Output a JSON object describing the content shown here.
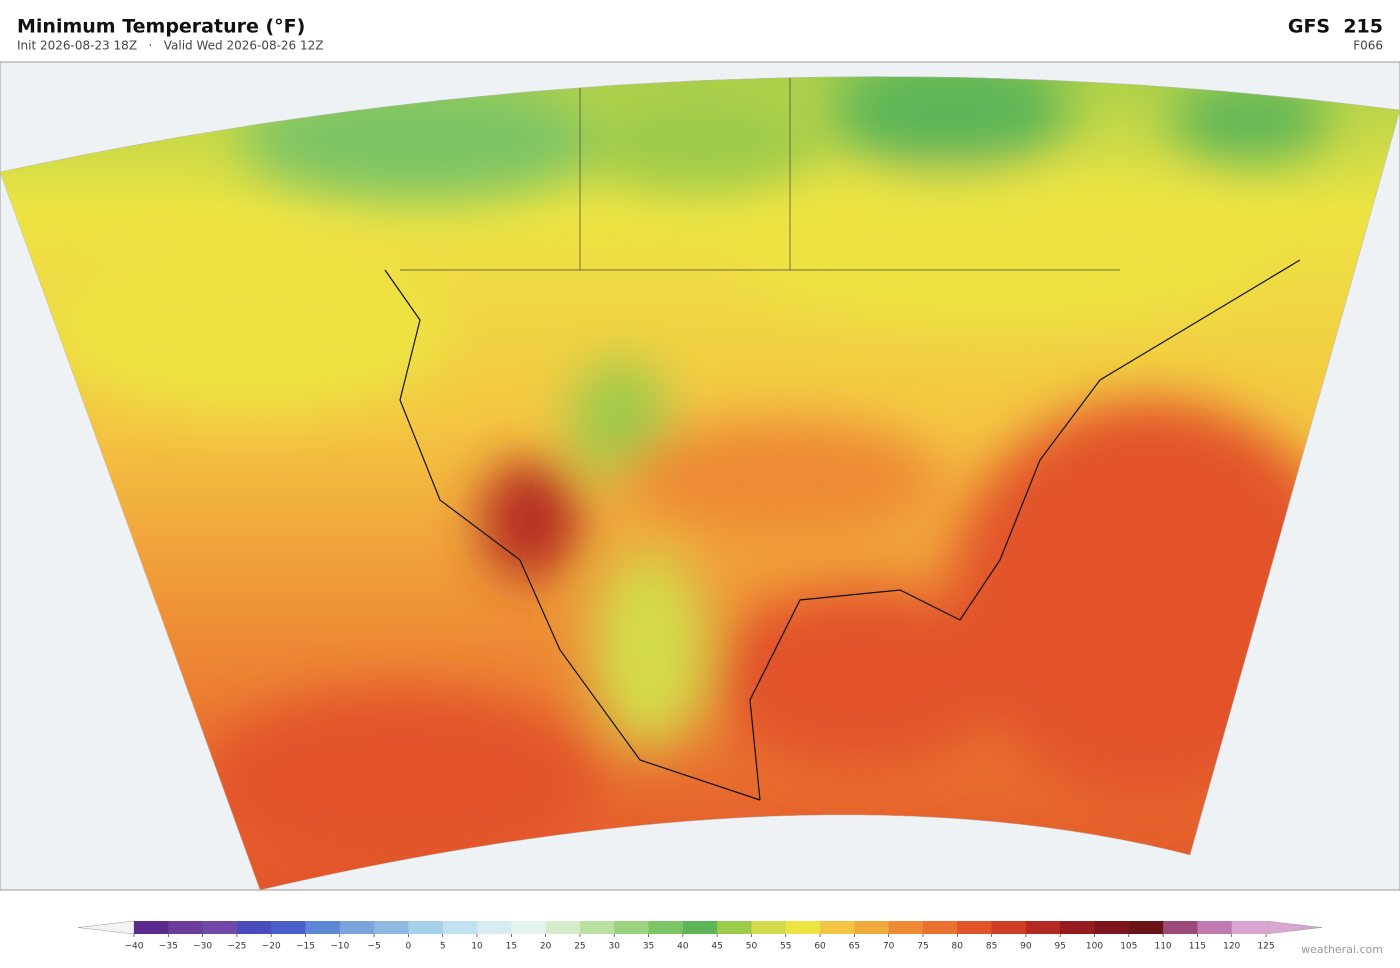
{
  "header": {
    "title": "Minimum Temperature  (°F)",
    "subtitle": "Init 2026-08-23 18Z   ·   Valid Wed 2026-08-26 12Z",
    "model": "GFS  215",
    "forecast_hour": "F066"
  },
  "colorbar": {
    "ticks": [
      {
        "value": -40,
        "label": "−40"
      },
      {
        "value": -35,
        "label": "−35"
      },
      {
        "value": -30,
        "label": "−30"
      },
      {
        "value": -25,
        "label": "−25"
      },
      {
        "value": -20,
        "label": "−20"
      },
      {
        "value": -15,
        "label": "−15"
      },
      {
        "value": -10,
        "label": "−10"
      },
      {
        "value": -5,
        "label": "−5"
      },
      0,
      5,
      10,
      15,
      20,
      25,
      30,
      35,
      40,
      45,
      50,
      55,
      60,
      65,
      70,
      75,
      80,
      85,
      90,
      95,
      100,
      105,
      110,
      115,
      120,
      125
    ],
    "colors": [
      "#5b2a8c",
      "#6a3d9a",
      "#7049a8",
      "#4b4bbd",
      "#4a5fc9",
      "#5e86d6",
      "#7ba3dc",
      "#8fb8e0",
      "#a6cfe8",
      "#c0e2f0",
      "#d6ecf2",
      "#e3f3ee",
      "#d4eccb",
      "#b9e0a0",
      "#9bd27f",
      "#7cc466",
      "#5db558",
      "#9ccb4c",
      "#d4db4a",
      "#ede443",
      "#f4c542",
      "#f2a93b",
      "#ee8a35",
      "#e9712f",
      "#e2532a",
      "#d13c26",
      "#b42922",
      "#961b1e",
      "#7d161a",
      "#6b1418",
      "#9c4a7a",
      "#c07ab0",
      "#d8a6d0"
    ],
    "extend_low_color": "#f4f4f4",
    "extend_high_color": "#d8a6d0"
  },
  "footer": {
    "credit": "weatherai.com"
  }
}
